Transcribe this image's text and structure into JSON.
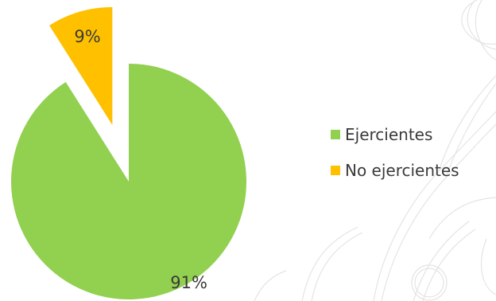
{
  "chart_data": {
    "type": "pie",
    "title": "",
    "categories": [
      "Ejercientes",
      "No ejercientes"
    ],
    "values": [
      91,
      9
    ],
    "value_labels": [
      "91%",
      "9%"
    ],
    "colors": [
      "#92D050",
      "#FFC000"
    ],
    "exploded": [
      false,
      true
    ],
    "legend": {
      "position": "right",
      "entries": [
        "Ejercientes",
        "No ejercientes"
      ]
    }
  },
  "background": {
    "watermark": "olive-branch"
  }
}
